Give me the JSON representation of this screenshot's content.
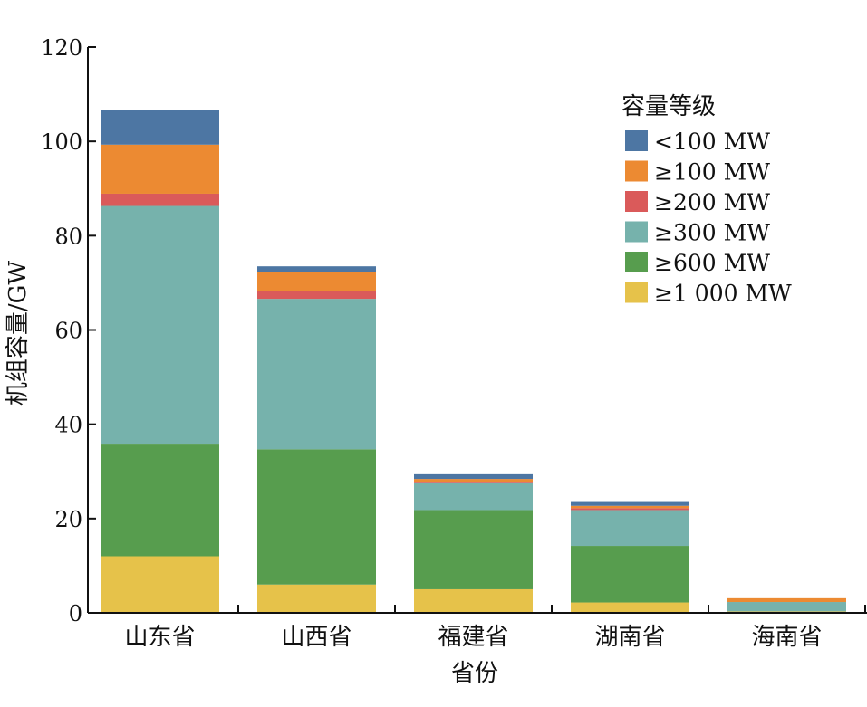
{
  "chart_data": {
    "type": "bar",
    "stacked": true,
    "xlabel": "省份",
    "ylabel": "机组容量/GW",
    "ylim": [
      0,
      120
    ],
    "yticks": [
      0,
      20,
      40,
      60,
      80,
      100,
      120
    ],
    "categories": [
      "山东省",
      "山西省",
      "福建省",
      "湖南省",
      "海南省"
    ],
    "legend_title": "容量等级",
    "legend_position": "top-right",
    "grid": false,
    "series": [
      {
        "name": "≥1 000 MW",
        "color": "#E6C24A",
        "values": [
          12.0,
          6.0,
          5.0,
          2.2,
          0.3
        ]
      },
      {
        "name": "≥600 MW",
        "color": "#579D4E",
        "values": [
          23.7,
          28.7,
          16.8,
          12.0,
          0.0
        ]
      },
      {
        "name": "≥300 MW",
        "color": "#76B2AC",
        "values": [
          50.6,
          31.9,
          5.7,
          7.6,
          2.0
        ]
      },
      {
        "name": "≥200 MW",
        "color": "#DA5A5A",
        "values": [
          2.6,
          1.6,
          0.3,
          0.4,
          0.0
        ]
      },
      {
        "name": "≥100 MW",
        "color": "#EC8A32",
        "values": [
          10.4,
          4.0,
          0.6,
          0.5,
          0.8
        ]
      },
      {
        "name": "<100 MW",
        "color": "#4D76A3",
        "values": [
          7.3,
          1.3,
          1.0,
          1.0,
          0.0
        ]
      }
    ]
  }
}
